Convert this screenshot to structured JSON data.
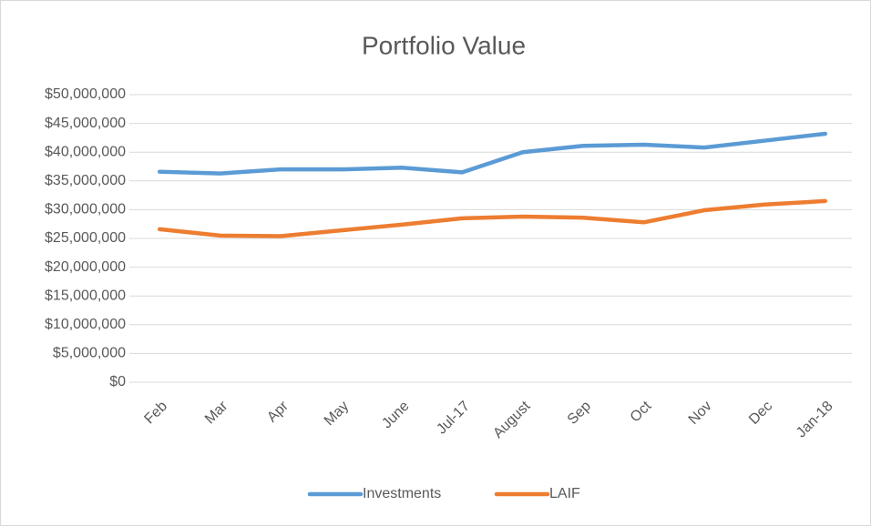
{
  "chart_data": {
    "type": "line",
    "title": "Portfolio Value",
    "categories": [
      "Feb",
      "Mar",
      "Apr",
      "May",
      "June",
      "Jul-17",
      "August",
      "Sep",
      "Oct",
      "Nov",
      "Dec",
      "Jan-18"
    ],
    "series": [
      {
        "name": "Investments",
        "color": "#5b9bd5",
        "values": [
          36600000,
          36300000,
          37000000,
          37000000,
          37300000,
          36500000,
          40000000,
          41100000,
          41300000,
          40800000,
          42000000,
          43200000
        ]
      },
      {
        "name": "LAIF",
        "color": "#ed7d31",
        "values": [
          26600000,
          25500000,
          25400000,
          26400000,
          27400000,
          28500000,
          28800000,
          28600000,
          27800000,
          29900000,
          30900000,
          31500000
        ]
      }
    ],
    "ylim": [
      0,
      50000000
    ],
    "yticks": [
      {
        "value": 0,
        "label": "$0"
      },
      {
        "value": 5000000,
        "label": "$5,000,000"
      },
      {
        "value": 10000000,
        "label": "$10,000,000"
      },
      {
        "value": 15000000,
        "label": "$15,000,000"
      },
      {
        "value": 20000000,
        "label": "$20,000,000"
      },
      {
        "value": 25000000,
        "label": "$25,000,000"
      },
      {
        "value": 30000000,
        "label": "$30,000,000"
      },
      {
        "value": 35000000,
        "label": "$35,000,000"
      },
      {
        "value": 40000000,
        "label": "$40,000,000"
      },
      {
        "value": 45000000,
        "label": "$45,000,000"
      },
      {
        "value": 50000000,
        "label": "$50,000,000"
      }
    ],
    "grid": true,
    "legend": "bottom"
  }
}
